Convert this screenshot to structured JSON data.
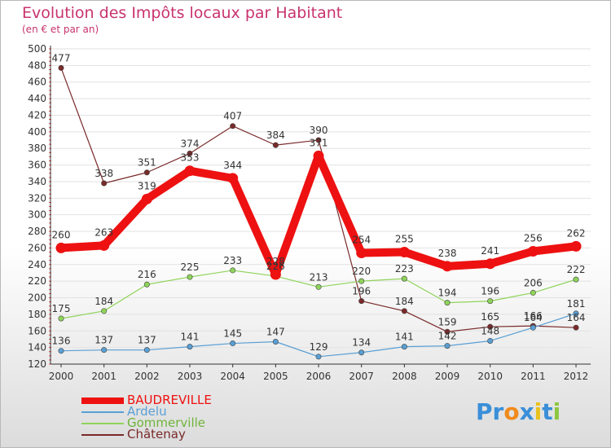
{
  "chart_data": {
    "type": "line",
    "title": "Evolution des Impôts locaux par Habitant",
    "subtitle": "(en € et par an)",
    "categories": [
      "2000",
      "2001",
      "2002",
      "2003",
      "2004",
      "2005",
      "2006",
      "2007",
      "2008",
      "2009",
      "2010",
      "2011",
      "2012"
    ],
    "ylim": [
      120,
      500
    ],
    "yticks": [
      120,
      140,
      160,
      180,
      200,
      220,
      240,
      260,
      280,
      300,
      320,
      340,
      360,
      380,
      400,
      420,
      440,
      460,
      480,
      500
    ],
    "grid": "horizontal",
    "series": [
      {
        "name": "BAUDREVILLE",
        "color": "#ee1111",
        "values": [
          260,
          263,
          319,
          353,
          344,
          228,
          371,
          254,
          255,
          238,
          241,
          256,
          262
        ]
      },
      {
        "name": "Ardelu",
        "color": "#5a9fd4",
        "values": [
          136,
          137,
          137,
          141,
          145,
          147,
          129,
          134,
          141,
          142,
          148,
          164,
          181
        ]
      },
      {
        "name": "Gommerville",
        "color": "#8fd45a",
        "values": [
          175,
          184,
          216,
          225,
          233,
          226,
          213,
          220,
          223,
          194,
          196,
          206,
          222
        ]
      },
      {
        "name": "Châtenay",
        "color": "#7a2a2a",
        "values": [
          477,
          338,
          351,
          374,
          407,
          384,
          390,
          196,
          184,
          159,
          165,
          166,
          164
        ]
      }
    ]
  },
  "legend": [
    "BAUDREVILLE",
    "Ardelu",
    "Gommerville",
    "Châtenay"
  ],
  "logo": {
    "text": "Proxiti",
    "letters": [
      "P",
      "r",
      "o",
      "x",
      "i",
      "t",
      "i"
    ],
    "colors": [
      "#3a8fd8",
      "#3a8fd8",
      "#f08a1c",
      "#3a8fd8",
      "#e8c21c",
      "#3a8fd8",
      "#8dc63f"
    ]
  }
}
